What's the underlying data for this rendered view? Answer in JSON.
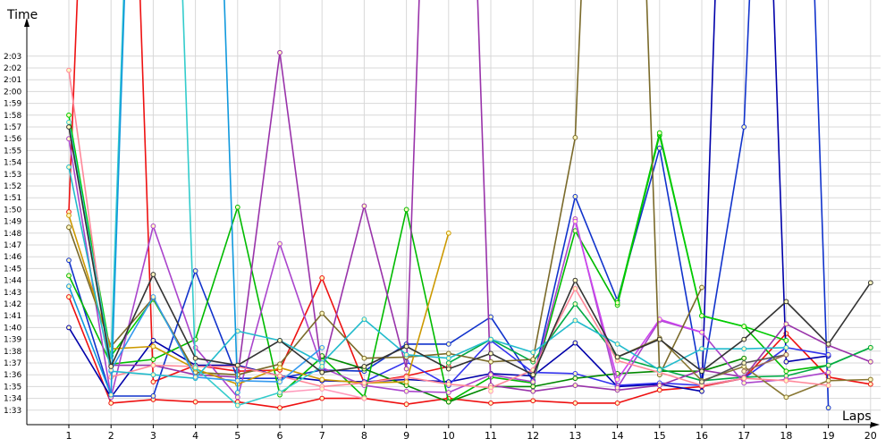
{
  "chart_data": {
    "type": "line",
    "ylabel": "Time",
    "xlabel": "Laps",
    "x": [
      1,
      2,
      3,
      4,
      5,
      6,
      7,
      8,
      9,
      10,
      11,
      12,
      13,
      14,
      15,
      16,
      17,
      18,
      19,
      20
    ],
    "y_tick_labels": [
      "1:33",
      "1:34",
      "1:35",
      "1:36",
      "1:37",
      "1:38",
      "1:39",
      "1:40",
      "1:41",
      "1:42",
      "1:43",
      "1:44",
      "1:45",
      "1:46",
      "1:47",
      "1:48",
      "1:49",
      "1:50",
      "1:51",
      "1:52",
      "1:53",
      "1:54",
      "1:55",
      "1:56",
      "1:57",
      "1:58",
      "1:59",
      "2:00",
      "2:01",
      "2:02",
      "2:03"
    ],
    "ylim": [
      92,
      184
    ],
    "grid": true,
    "legend": "none",
    "series": [
      {
        "color": "#ee1111",
        "values": [
          102.6,
          93.6,
          93.9,
          93.7,
          93.7,
          93.2,
          94.0,
          94.0,
          93.5,
          94.0,
          93.6,
          93.8,
          93.6,
          93.6,
          94.7,
          95.0,
          95.7,
          99.5,
          95.8,
          95.2
        ]
      },
      {
        "color": "#ee1111",
        "values": [
          109.8,
          200,
          95.4,
          96.8,
          96.3,
          96.4,
          104.2,
          95.3,
          95.9,
          96.7,
          null,
          null,
          null,
          null,
          null,
          null,
          null,
          null,
          null,
          null
        ]
      },
      {
        "color": "#1133cc",
        "values": [
          105.7,
          94.2,
          94.2,
          104.8,
          95.7,
          95.7,
          96.4,
          96.3,
          98.6,
          98.6,
          100.9,
          95.5,
          111.1,
          102.3,
          115.2,
          95.3,
          117.0,
          200,
          93.2,
          null
        ]
      },
      {
        "color": "#0000aa",
        "values": [
          100.0,
          94.1,
          98.9,
          96.8,
          96.8,
          95.9,
          95.5,
          95.4,
          95.6,
          95.4,
          96.1,
          95.9,
          98.7,
          95.0,
          95.2,
          94.6,
          200,
          97.1,
          97.6,
          null
        ]
      },
      {
        "color": "#3333ee",
        "values": [
          null,
          null,
          null,
          null,
          null,
          null,
          null,
          95.4,
          97.1,
          95.1,
          98.9,
          96.2,
          96.1,
          95.1,
          95.3,
          95.1,
          95.7,
          98.3,
          97.7,
          null
        ]
      },
      {
        "color": "#00bb00",
        "values": [
          104.4,
          96.9,
          97.3,
          99.0,
          110.2,
          94.3,
          97.5,
          94.1,
          110.0,
          93.7,
          95.8,
          95.3,
          108.2,
          101.9,
          116.3,
          101.0,
          100.1,
          96.3,
          96.8,
          98.3
        ]
      },
      {
        "color": "#00cc00",
        "values": [
          118.0,
          97.6,
          102.4,
          96.2,
          null,
          null,
          null,
          null,
          null,
          null,
          null,
          null,
          null,
          null,
          null,
          null,
          null,
          null,
          null,
          null
        ]
      },
      {
        "color": "#00cc00",
        "values": [
          null,
          null,
          null,
          null,
          null,
          null,
          null,
          null,
          null,
          null,
          null,
          null,
          null,
          102.1,
          116.5,
          101.0,
          100.1,
          98.9,
          null,
          null
        ]
      },
      {
        "color": "#008800",
        "values": [
          null,
          null,
          null,
          null,
          null,
          null,
          97.6,
          96.5,
          95.1,
          93.7,
          95.0,
          95.0,
          95.7,
          96.1,
          96.3,
          96.3,
          97.4,
          null,
          null,
          null
        ]
      },
      {
        "color": "#00aa44",
        "values": [
          null,
          null,
          null,
          null,
          null,
          null,
          null,
          null,
          null,
          97.0,
          99.0,
          97.1,
          102.0,
          97.5,
          96.5,
          95.5,
          95.8,
          95.9,
          96.8,
          98.3
        ]
      },
      {
        "color": "#9933aa",
        "values": [
          null,
          96.8,
          96.8,
          96.0,
          95.8,
          123.3,
          96.3,
          110.3,
          96.5,
          200,
          95.1,
          94.6,
          95.1,
          94.7,
          95.1,
          96.4,
          95.8,
          100.3,
          98.5,
          97.1
        ]
      },
      {
        "color": "#aa44cc",
        "values": [
          116.0,
          94.1,
          108.6,
          98.3,
          94.1,
          107.1,
          96.6,
          95.1,
          94.6,
          94.5,
          96.0,
          95.4,
          109.2,
          94.9,
          100.6,
          99.6,
          95.3,
          95.6,
          96.2,
          null
        ]
      },
      {
        "color": "#cc44ee",
        "values": [
          null,
          null,
          null,
          null,
          null,
          null,
          null,
          null,
          null,
          null,
          null,
          null,
          109.0,
          95.6,
          100.7,
          99.6,
          null,
          null,
          null,
          null
        ]
      },
      {
        "color": "#7a6a2a",
        "values": [
          108.5,
          98.4,
          102.5,
          96.2,
          96.0,
          96.9,
          101.2,
          97.4,
          97.5,
          97.8,
          97.1,
          97.3,
          116.1,
          200,
          96.0,
          103.4,
          null,
          null,
          null,
          null
        ]
      },
      {
        "color": "#887733",
        "values": [
          null,
          null,
          null,
          null,
          null,
          null,
          null,
          null,
          null,
          null,
          null,
          null,
          null,
          97.5,
          99.1,
          95.5,
          96.7,
          94.1,
          95.5,
          95.6
        ]
      },
      {
        "color": "#cc9900",
        "values": [
          109.5,
          98.2,
          98.4,
          96.5,
          95.2,
          96.6,
          95.6,
          95.3,
          95.4,
          108.0,
          null,
          null,
          null,
          null,
          null,
          null,
          null,
          null,
          null,
          null
        ]
      },
      {
        "color": "#ff8899",
        "values": [
          121.8,
          95.8,
          96.8,
          96.7,
          96.7,
          95.9,
          95.0,
          95.3,
          95.8,
          95.2,
          94.9,
          96.4,
          103.3,
          97.2,
          96.2,
          95.1,
          95.7,
          95.5,
          95.1,
          null
        ]
      },
      {
        "color": "#ff99bb",
        "values": [
          null,
          null,
          null,
          null,
          null,
          94.5,
          94.8,
          94.0,
          null,
          null,
          94.6,
          null,
          null,
          null,
          null,
          null,
          null,
          null,
          null,
          null
        ]
      },
      {
        "color": "#22bbcc",
        "values": [
          113.6,
          96.3,
          96.0,
          95.7,
          99.7,
          98.9,
          97.0,
          100.7,
          97.7,
          97.4,
          99.0,
          97.9,
          100.6,
          98.6,
          96.4,
          98.2,
          98.2,
          98.3,
          null,
          null
        ]
      },
      {
        "color": "#33cccc",
        "values": [
          117.4,
          97.2,
          200,
          96.6,
          93.4,
          94.5,
          96.7,
          null,
          null,
          null,
          null,
          null,
          null,
          null,
          null,
          null,
          null,
          null,
          null,
          null
        ]
      },
      {
        "color": "#1199dd",
        "values": [
          103.5,
          94.3,
          200,
          200,
          94.5,
          null,
          null,
          null,
          null,
          null,
          null,
          null,
          null,
          null,
          null,
          null,
          null,
          null,
          null,
          null
        ]
      },
      {
        "color": "#3399ee",
        "values": [
          null,
          96.4,
          102.6,
          95.8,
          95.5,
          95.4,
          98.3,
          null,
          null,
          null,
          null,
          null,
          null,
          null,
          null,
          null,
          null,
          null,
          null,
          null
        ]
      },
      {
        "color": "#333333",
        "values": [
          117.0,
          96.7,
          104.5,
          97.4,
          96.8,
          98.9,
          96.2,
          96.7,
          98.4,
          96.5,
          97.8,
          96.0,
          104.0,
          97.5,
          99.0,
          96.3,
          99.0,
          102.2,
          98.6,
          103.8
        ]
      },
      {
        "color": "#555555",
        "values": [
          null,
          null,
          null,
          null,
          null,
          null,
          null,
          null,
          null,
          null,
          null,
          null,
          null,
          null,
          null,
          95.4,
          97.0,
          97.7,
          null,
          null
        ]
      },
      {
        "color": "#996655",
        "values": [
          null,
          null,
          null,
          null,
          null,
          null,
          null,
          null,
          null,
          null,
          null,
          null,
          null,
          null,
          null,
          null,
          96.3,
          97.7,
          null,
          null
        ]
      }
    ]
  }
}
